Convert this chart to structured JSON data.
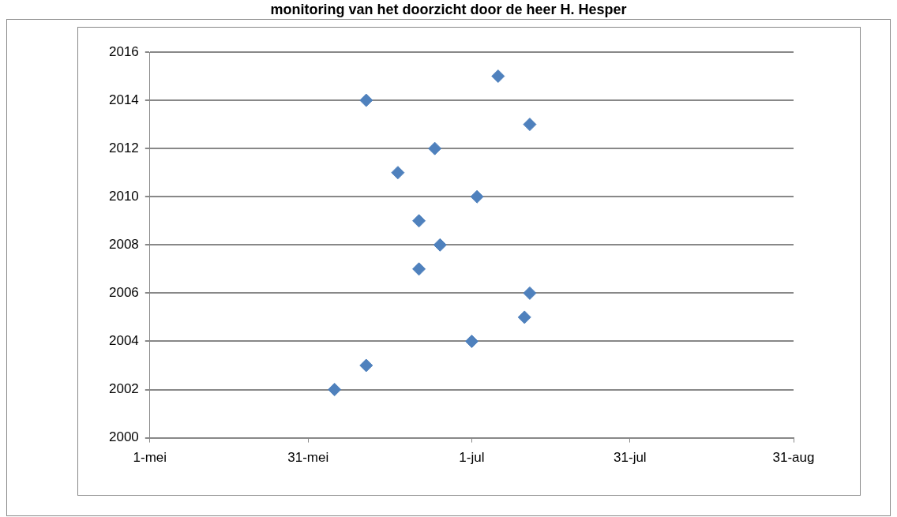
{
  "chart_data": {
    "type": "scatter",
    "title": "monitoring van het doorzicht door de heer H. Hesper",
    "x": [
      "--06-05",
      "--06-11",
      "--07-01",
      "--07-11",
      "--07-12",
      "--06-21",
      "--06-25",
      "--06-21",
      "--07-02",
      "--06-17",
      "--06-24",
      "--07-12",
      "--06-11",
      "--07-06"
    ],
    "values": [
      2002,
      2003,
      2004,
      2005,
      2006,
      2007,
      2008,
      2009,
      2010,
      2011,
      2012,
      2013,
      2014,
      2015
    ],
    "color": "#4f81bd",
    "marker": "diamond",
    "xlim": [
      "--05-01",
      "--08-31"
    ],
    "xticks": [
      {
        "value": "--05-01",
        "label": "1-mei"
      },
      {
        "value": "--05-31",
        "label": "31-mei"
      },
      {
        "value": "--07-01",
        "label": "1-jul"
      },
      {
        "value": "--07-31",
        "label": "31-jul"
      },
      {
        "value": "--08-31",
        "label": "31-aug"
      }
    ],
    "ylim": [
      2000,
      2016
    ],
    "yticks": [
      2000,
      2002,
      2004,
      2006,
      2008,
      2010,
      2012,
      2014,
      2016
    ],
    "grid": "y",
    "legend": false
  }
}
